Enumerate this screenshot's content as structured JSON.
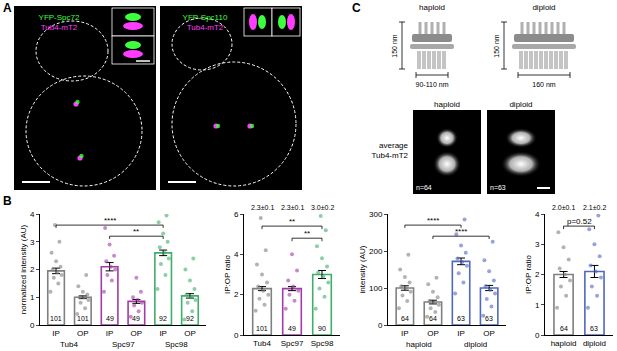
{
  "figure": {
    "panel_letters": [
      "A",
      "B",
      "C"
    ],
    "panel_a": {
      "images": [
        {
          "labels": [
            "YFP-Spc72",
            "Tub4-mT2"
          ]
        },
        {
          "labels": [
            "YFP-Spc110",
            "Tub4-mT2"
          ]
        }
      ]
    },
    "panel_c": {
      "schematic": [
        {
          "label": "haploid",
          "height": "150 nm",
          "width": "90-110 nm"
        },
        {
          "label": "diploid",
          "height": "150 nm",
          "width": "160 nm"
        }
      ],
      "average_label": [
        "average",
        "Tub4-mT2"
      ],
      "averages": [
        {
          "label": "haploid",
          "n": "n=64"
        },
        {
          "label": "diploid",
          "n": "n=63"
        }
      ]
    }
  },
  "chart_data": [
    {
      "type": "bar",
      "categories": [
        "IP",
        "OP",
        "IP",
        "OP",
        "IP",
        "OP"
      ],
      "groups": [
        "Tub4",
        "Spc97",
        "Spc98"
      ],
      "y_label": "normalized intensity (AU)",
      "ylim": [
        0,
        4
      ],
      "yticks": [
        0,
        1,
        2,
        3,
        4
      ],
      "values": [
        1.95,
        1.0,
        2.1,
        0.85,
        2.6,
        1.05
      ],
      "errors": [
        0.1,
        0.05,
        0.15,
        0.07,
        0.1,
        0.08
      ],
      "colors": [
        "#808080",
        "#808080",
        "#a23ba6",
        "#a23ba6",
        "#3fae6a",
        "#3fae6a"
      ],
      "n": [
        101,
        101,
        49,
        49,
        92,
        92
      ],
      "points": [
        [
          1.2,
          1.5,
          1.7,
          1.8,
          1.9,
          2.0,
          2.1,
          2.3,
          2.6,
          3.0,
          3.6
        ],
        [
          0.4,
          0.6,
          0.8,
          0.9,
          1.0,
          1.0,
          1.1,
          1.2,
          1.4,
          1.8
        ],
        [
          1.2,
          1.6,
          1.8,
          2.0,
          2.1,
          2.3,
          2.5,
          2.9,
          3.5
        ],
        [
          0.3,
          0.5,
          0.7,
          0.8,
          0.9,
          1.0,
          1.2,
          1.7
        ],
        [
          1.3,
          1.8,
          2.2,
          2.4,
          2.6,
          2.8,
          3.0,
          3.3,
          3.7,
          3.95
        ],
        [
          0.2,
          0.5,
          0.8,
          0.9,
          1.0,
          1.1,
          1.3,
          1.6,
          2.0,
          2.4
        ]
      ],
      "comparisons": [
        {
          "pair": [
            0,
            4
          ],
          "label": "****"
        },
        {
          "pair": [
            2,
            4
          ],
          "label": "**"
        }
      ],
      "data_labels": false
    },
    {
      "type": "bar",
      "categories": [
        "Tub4",
        "Spc97",
        "Spc98"
      ],
      "y_label": "IP:OP ratio",
      "ylim": [
        0,
        6
      ],
      "yticks": [
        0,
        2,
        4,
        6
      ],
      "values": [
        2.3,
        2.3,
        3.0
      ],
      "value_labels": [
        "2.3±0.1",
        "2.3±0.1",
        "3.0±0.2"
      ],
      "errors": [
        0.1,
        0.1,
        0.2
      ],
      "colors": [
        "#808080",
        "#a23ba6",
        "#3fae6a"
      ],
      "n": [
        101,
        49,
        90
      ],
      "points": [
        [
          1.2,
          1.5,
          1.8,
          2.0,
          2.2,
          2.4,
          2.6,
          3.0,
          3.5,
          4.2,
          5.8
        ],
        [
          1.3,
          1.7,
          2.0,
          2.2,
          2.4,
          2.7,
          3.2,
          4.0
        ],
        [
          1.3,
          1.9,
          2.3,
          2.6,
          2.9,
          3.1,
          3.4,
          3.8,
          4.4,
          5.2,
          5.9
        ]
      ],
      "comparisons": [
        {
          "pair": [
            0,
            2
          ],
          "label": "**"
        },
        {
          "pair": [
            1,
            2
          ],
          "label": "**"
        }
      ],
      "data_labels": true
    },
    {
      "type": "bar",
      "categories": [
        "IP",
        "OP",
        "IP",
        "OP"
      ],
      "groups": [
        "haploid",
        "diploid"
      ],
      "y_label": "intensity (AU)",
      "ylim": [
        0,
        300
      ],
      "yticks": [
        0,
        100,
        200,
        300
      ],
      "values": [
        100,
        62,
        172,
        100
      ],
      "errors": [
        6,
        5,
        9,
        7
      ],
      "colors": [
        "#808080",
        "#808080",
        "#5068c0",
        "#5068c0"
      ],
      "n": [
        64,
        64,
        63,
        63
      ],
      "points": [
        [
          45,
          65,
          80,
          90,
          100,
          105,
          115,
          130,
          150,
          190
        ],
        [
          22,
          35,
          45,
          55,
          60,
          65,
          75,
          90,
          110,
          128
        ],
        [
          85,
          115,
          140,
          160,
          170,
          180,
          195,
          215,
          245,
          285
        ],
        [
          25,
          50,
          70,
          85,
          95,
          105,
          120,
          145,
          175,
          225
        ]
      ],
      "comparisons": [
        {
          "pair": [
            0,
            2
          ],
          "label": "****"
        },
        {
          "pair": [
            1,
            3
          ],
          "label": "****"
        }
      ],
      "data_labels": false
    },
    {
      "type": "bar",
      "categories": [
        "haploid",
        "diploid"
      ],
      "y_label": "IP:OP ratio",
      "ylim": [
        0,
        4
      ],
      "yticks": [
        0,
        1,
        2,
        3,
        4
      ],
      "values": [
        2.0,
        2.1
      ],
      "value_labels": [
        "2.0±0.1",
        "2.1±0.2"
      ],
      "errors": [
        0.1,
        0.2
      ],
      "colors": [
        "#808080",
        "#5068c0"
      ],
      "n": [
        64,
        63
      ],
      "points": [
        [
          0.9,
          1.3,
          1.6,
          1.8,
          2.0,
          2.2,
          2.5,
          2.9,
          3.4
        ],
        [
          0.9,
          1.3,
          1.6,
          1.9,
          2.1,
          2.3,
          2.6,
          3.0,
          3.5,
          3.95
        ]
      ],
      "comparisons": [
        {
          "pair": [
            0,
            1
          ],
          "label": "p=0.52"
        }
      ],
      "data_labels": true
    }
  ]
}
